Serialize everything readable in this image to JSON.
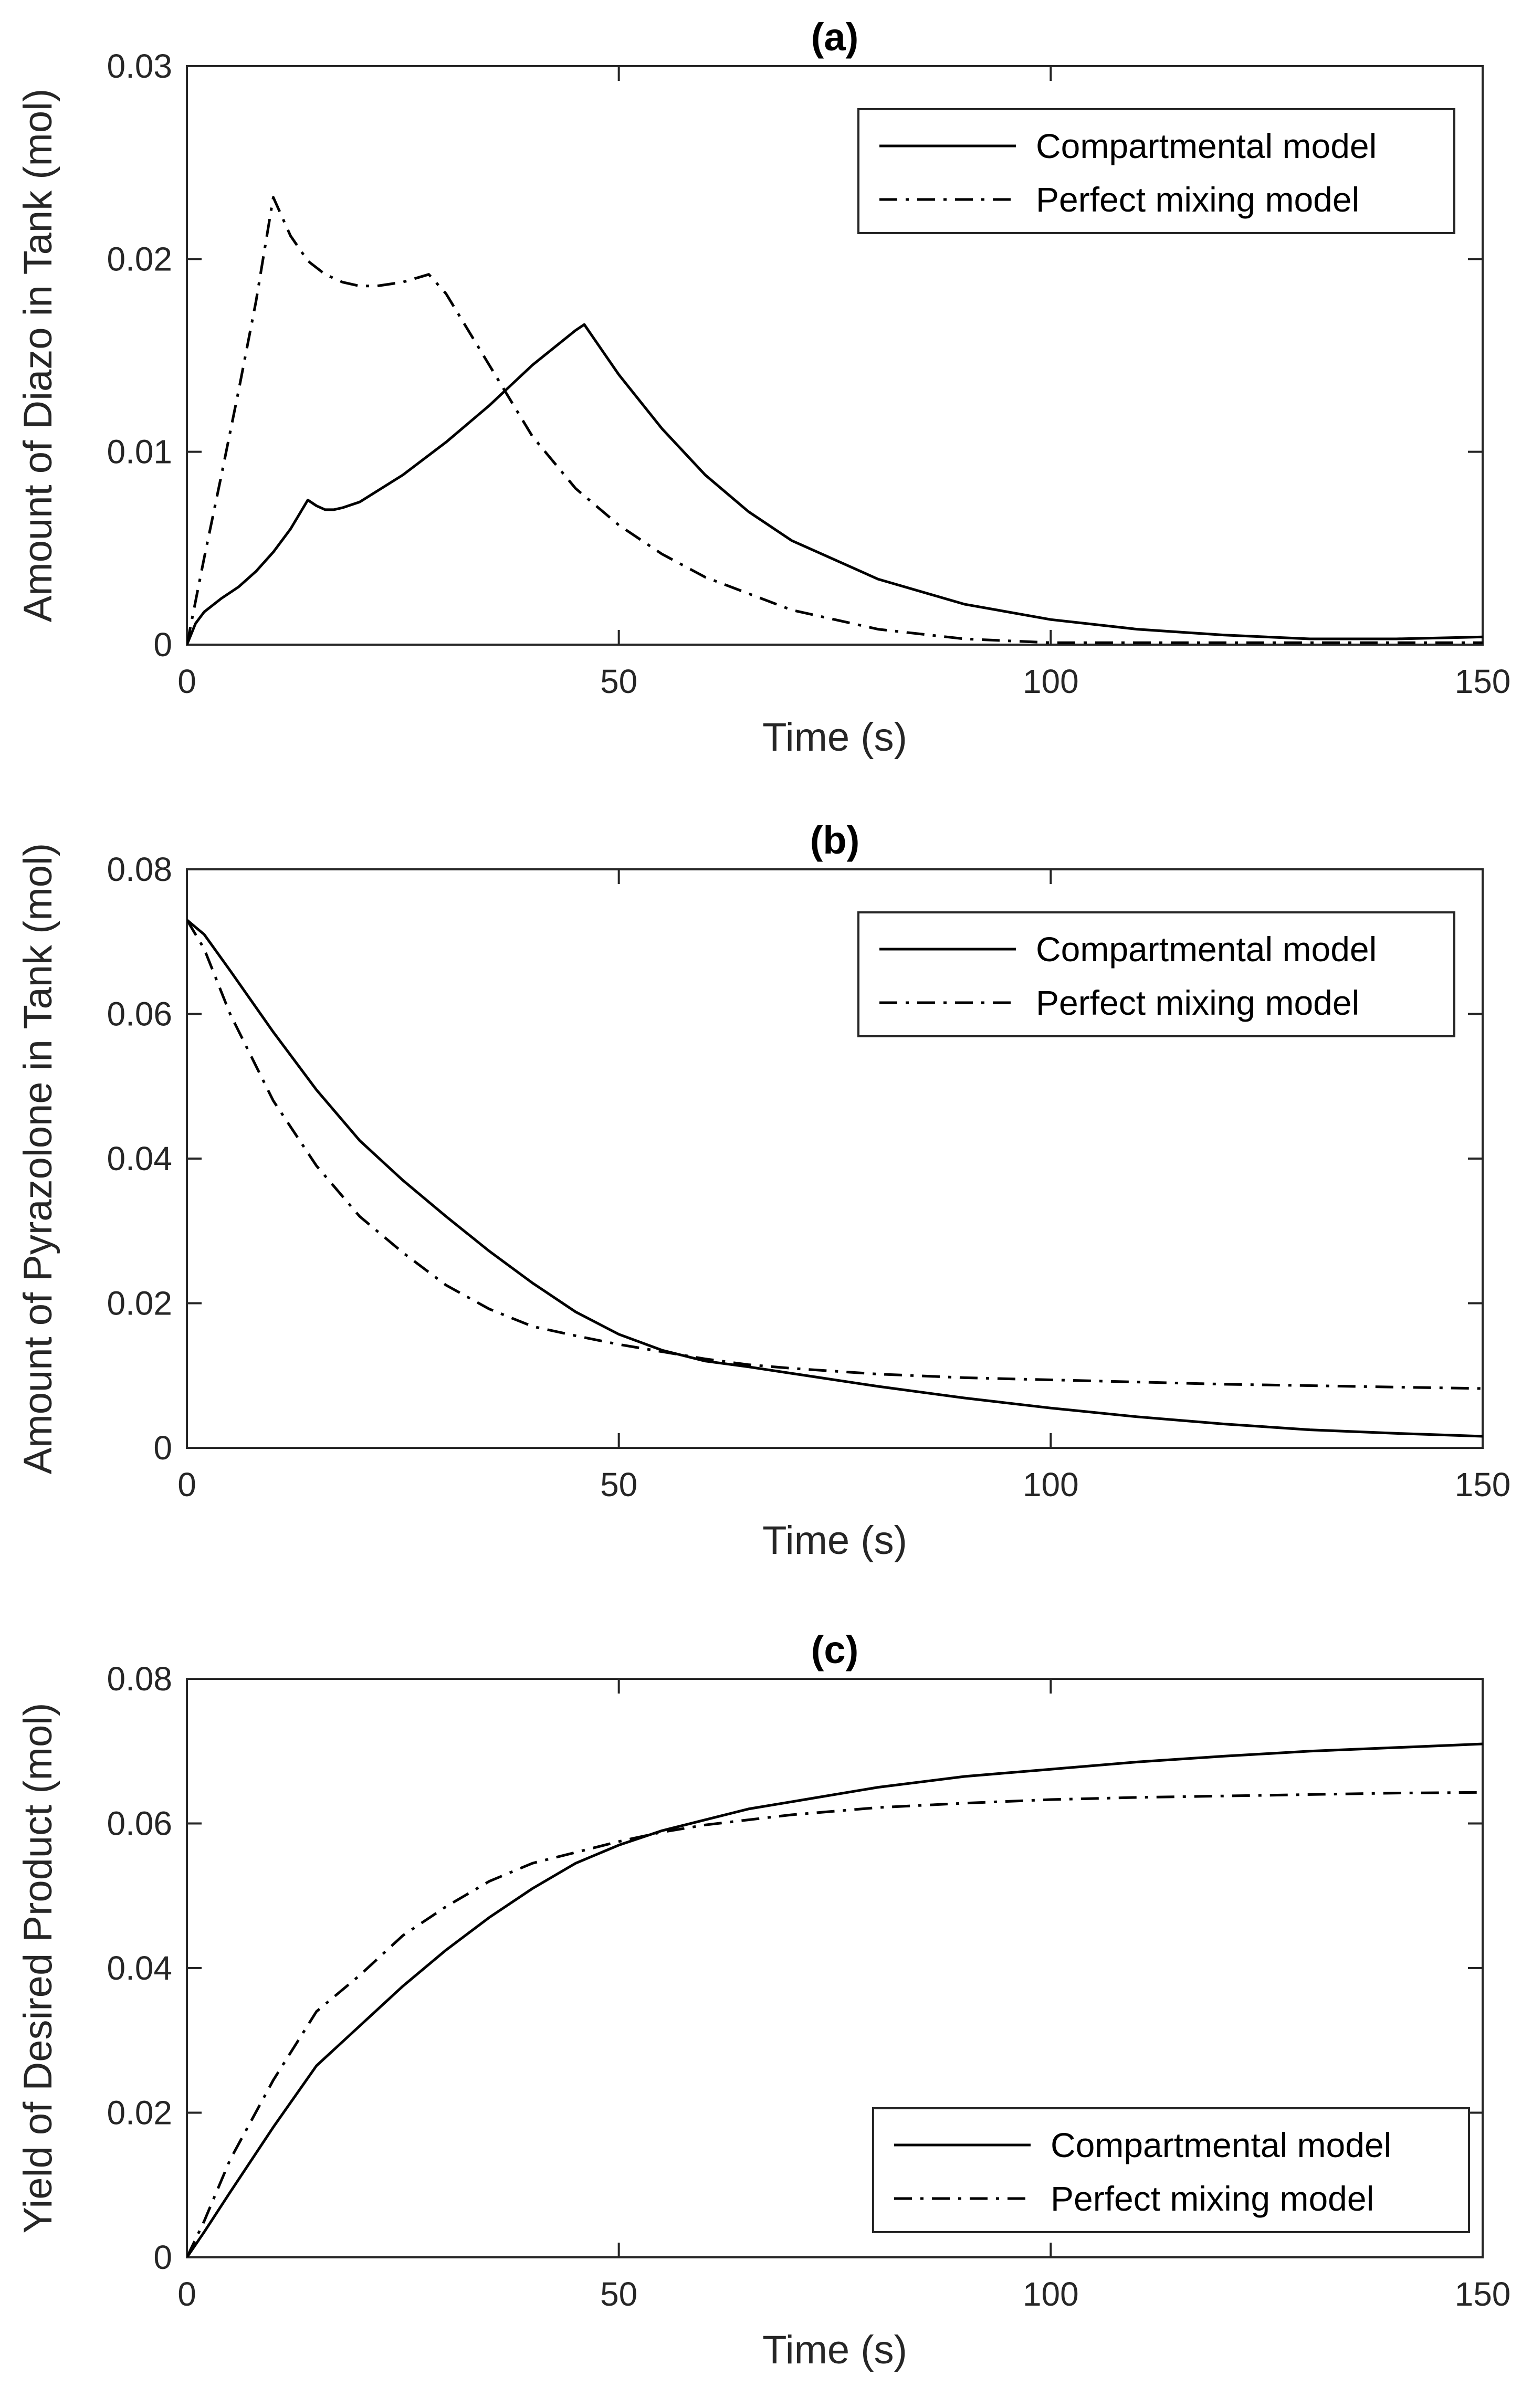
{
  "chart_data": [
    {
      "panel": "a",
      "type": "line",
      "title": "(a)",
      "xlabel": "Time (s)",
      "ylabel": "Amount of Diazo in Tank (mol)",
      "xlim": [
        0,
        150
      ],
      "ylim": [
        0,
        0.03
      ],
      "xticks": [
        0,
        50,
        100,
        150
      ],
      "xtick_labels": [
        "0",
        "50",
        "100",
        "150"
      ],
      "yticks": [
        0,
        0.01,
        0.02,
        0.03
      ],
      "ytick_labels": [
        "0",
        "0.01",
        "0.02",
        "0.03"
      ],
      "legend_position": "top-right",
      "series": [
        {
          "name": "Compartmental model",
          "style": "solid",
          "x": [
            0,
            1,
            2,
            4,
            6,
            8,
            10,
            12,
            14,
            15,
            16,
            17,
            18,
            20,
            25,
            30,
            35,
            40,
            45,
            46,
            48,
            50,
            55,
            60,
            65,
            70,
            80,
            90,
            100,
            110,
            120,
            130,
            140,
            150
          ],
          "y": [
            0,
            0.0011,
            0.0017,
            0.0024,
            0.003,
            0.0038,
            0.0048,
            0.006,
            0.0075,
            0.0072,
            0.007,
            0.007,
            0.0071,
            0.0074,
            0.0088,
            0.0105,
            0.0124,
            0.0145,
            0.0163,
            0.0166,
            0.0153,
            0.014,
            0.0112,
            0.0088,
            0.0069,
            0.0054,
            0.0034,
            0.0021,
            0.0013,
            0.0008,
            0.0005,
            0.0003,
            0.0003,
            0.0004
          ]
        },
        {
          "name": "Perfect mixing model",
          "style": "dashdot",
          "x": [
            0,
            2,
            4,
            6,
            8,
            10,
            12,
            14,
            16,
            18,
            20,
            22,
            25,
            28,
            30,
            35,
            40,
            45,
            50,
            55,
            60,
            70,
            80,
            90,
            100,
            110,
            120,
            130,
            150
          ],
          "y": [
            0,
            0.0045,
            0.0088,
            0.0132,
            0.0178,
            0.0232,
            0.0212,
            0.0199,
            0.0192,
            0.0188,
            0.0186,
            0.0186,
            0.0188,
            0.0192,
            0.0182,
            0.0145,
            0.0108,
            0.0081,
            0.0062,
            0.0047,
            0.0035,
            0.0018,
            0.0008,
            0.0003,
            0.0001,
            0.0001,
            0.0001,
            0.0001,
            0.0001
          ]
        }
      ]
    },
    {
      "panel": "b",
      "type": "line",
      "title": "(b)",
      "xlabel": "Time (s)",
      "ylabel": "Amount of Pyrazolone in Tank (mol)",
      "xlim": [
        0,
        150
      ],
      "ylim": [
        0,
        0.08
      ],
      "xticks": [
        0,
        50,
        100,
        150
      ],
      "xtick_labels": [
        "0",
        "50",
        "100",
        "150"
      ],
      "yticks": [
        0,
        0.02,
        0.04,
        0.06,
        0.08
      ],
      "ytick_labels": [
        "0",
        "0.02",
        "0.04",
        "0.06",
        "0.08"
      ],
      "legend_position": "top-right",
      "series": [
        {
          "name": "Compartmental model",
          "style": "solid",
          "x": [
            0,
            2,
            5,
            10,
            15,
            20,
            25,
            30,
            35,
            40,
            45,
            50,
            55,
            60,
            65,
            70,
            80,
            90,
            100,
            110,
            120,
            130,
            140,
            150
          ],
          "y": [
            0.073,
            0.071,
            0.066,
            0.0575,
            0.0495,
            0.0425,
            0.037,
            0.032,
            0.0272,
            0.0228,
            0.0188,
            0.0157,
            0.0135,
            0.012,
            0.0112,
            0.0103,
            0.0085,
            0.0069,
            0.0055,
            0.0043,
            0.0033,
            0.0025,
            0.002,
            0.0016
          ]
        },
        {
          "name": "Perfect mixing model",
          "style": "dashdot",
          "x": [
            0,
            2,
            5,
            10,
            15,
            20,
            25,
            30,
            35,
            40,
            45,
            50,
            55,
            60,
            65,
            70,
            80,
            90,
            100,
            110,
            120,
            130,
            140,
            150
          ],
          "y": [
            0.073,
            0.069,
            0.06,
            0.048,
            0.039,
            0.032,
            0.027,
            0.0225,
            0.0192,
            0.0168,
            0.0155,
            0.0143,
            0.0133,
            0.0123,
            0.0115,
            0.011,
            0.0102,
            0.0097,
            0.0094,
            0.0091,
            0.0088,
            0.0086,
            0.0084,
            0.0082
          ]
        }
      ]
    },
    {
      "panel": "c",
      "type": "line",
      "title": "(c)",
      "xlabel": "Time (s)",
      "ylabel": "Yield of Desired Product (mol)",
      "xlim": [
        0,
        150
      ],
      "ylim": [
        0,
        0.08
      ],
      "xticks": [
        0,
        50,
        100,
        150
      ],
      "xtick_labels": [
        "0",
        "50",
        "100",
        "150"
      ],
      "yticks": [
        0,
        0.02,
        0.04,
        0.06,
        0.08
      ],
      "ytick_labels": [
        "0",
        "0.02",
        "0.04",
        "0.06",
        "0.08"
      ],
      "legend_position": "bottom-right",
      "series": [
        {
          "name": "Compartmental model",
          "style": "solid",
          "x": [
            0,
            2,
            5,
            10,
            15,
            20,
            25,
            30,
            35,
            40,
            45,
            50,
            55,
            60,
            65,
            70,
            80,
            90,
            100,
            110,
            120,
            130,
            140,
            150
          ],
          "y": [
            0,
            0.0035,
            0.009,
            0.018,
            0.0265,
            0.032,
            0.0375,
            0.0425,
            0.047,
            0.051,
            0.0545,
            0.057,
            0.059,
            0.0605,
            0.062,
            0.063,
            0.065,
            0.0665,
            0.0675,
            0.0685,
            0.0693,
            0.07,
            0.0705,
            0.071
          ]
        },
        {
          "name": "Perfect mixing model",
          "style": "dashdot",
          "x": [
            0,
            2,
            5,
            10,
            15,
            20,
            25,
            30,
            35,
            40,
            45,
            50,
            55,
            60,
            65,
            70,
            80,
            90,
            100,
            110,
            120,
            130,
            140,
            150
          ],
          "y": [
            0,
            0.005,
            0.0135,
            0.0245,
            0.034,
            0.039,
            0.0445,
            0.0485,
            0.052,
            0.0545,
            0.056,
            0.0575,
            0.0588,
            0.0598,
            0.0605,
            0.0612,
            0.0622,
            0.0628,
            0.0633,
            0.0636,
            0.0638,
            0.064,
            0.0642,
            0.0643
          ]
        }
      ]
    }
  ]
}
